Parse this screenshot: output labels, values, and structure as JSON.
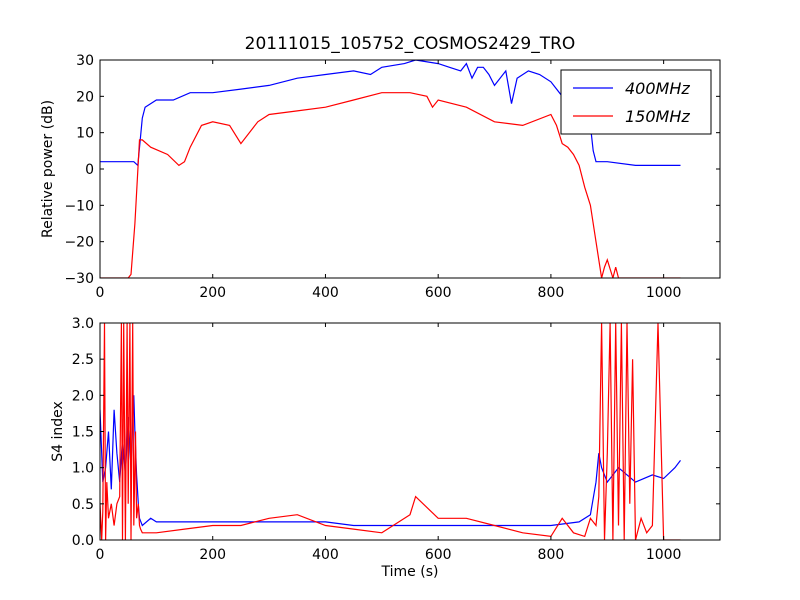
{
  "figure": {
    "title": "20111015_105752_COSMOS2429_TRO",
    "xlabel": "Time (s)"
  },
  "chart_data": [
    {
      "type": "line",
      "title": "20111015_105752_COSMOS2429_TRO",
      "ylabel": "Relative power (dB)",
      "xlim": [
        0,
        1100
      ],
      "ylim": [
        -30,
        30
      ],
      "xticks": [
        0,
        200,
        400,
        600,
        800,
        1000
      ],
      "yticks": [
        -30,
        -20,
        -10,
        0,
        10,
        20,
        30
      ],
      "ytick_labels": [
        "−30",
        "−20",
        "−10",
        "0",
        "10",
        "20",
        "30"
      ],
      "grid": false,
      "legend": {
        "position": "top-right"
      },
      "series": [
        {
          "name": "400MHz",
          "color": "#0000ff",
          "x": [
            0,
            20,
            40,
            60,
            67,
            75,
            80,
            100,
            130,
            160,
            200,
            250,
            300,
            350,
            400,
            450,
            480,
            500,
            540,
            560,
            600,
            620,
            640,
            650,
            660,
            670,
            680,
            690,
            700,
            720,
            730,
            740,
            760,
            780,
            800,
            820,
            840,
            850,
            860,
            870,
            875,
            880,
            900,
            950,
            1000,
            1030
          ],
          "y": [
            2,
            2,
            2,
            2,
            1,
            14,
            17,
            19,
            19,
            21,
            21,
            22,
            23,
            25,
            26,
            27,
            26,
            28,
            29,
            30,
            29,
            28,
            27,
            29,
            25,
            28,
            28,
            26,
            23,
            27,
            18,
            25,
            27,
            26,
            24,
            20,
            17,
            17,
            12,
            12,
            5,
            2,
            2,
            1,
            1,
            1
          ]
        },
        {
          "name": "150MHz",
          "color": "#ff0000",
          "x": [
            0,
            50,
            55,
            62,
            70,
            75,
            90,
            120,
            140,
            150,
            160,
            180,
            200,
            230,
            250,
            280,
            300,
            350,
            400,
            450,
            500,
            550,
            580,
            590,
            600,
            650,
            700,
            750,
            800,
            810,
            820,
            830,
            840,
            850,
            860,
            870,
            880,
            890,
            895,
            900,
            910,
            915,
            920,
            950,
            1000,
            1030
          ],
          "y": [
            -30,
            -30,
            -29,
            -15,
            8,
            8,
            6,
            4,
            1,
            2,
            6,
            12,
            13,
            12,
            7,
            13,
            15,
            16,
            17,
            19,
            21,
            21,
            20,
            17,
            19,
            17,
            13,
            12,
            15,
            12,
            7,
            6,
            4,
            1,
            -5,
            -10,
            -20,
            -30,
            -27,
            -25,
            -30,
            -27,
            -30,
            -30,
            -30,
            -30
          ]
        }
      ]
    },
    {
      "type": "line",
      "xlabel": "Time (s)",
      "ylabel": "S4 index",
      "xlim": [
        0,
        1100
      ],
      "ylim": [
        0,
        3
      ],
      "xticks": [
        0,
        200,
        400,
        600,
        800,
        1000
      ],
      "yticks": [
        0,
        0.5,
        1,
        1.5,
        2,
        2.5,
        3
      ],
      "ytick_labels": [
        "0.0",
        "0.5",
        "1.0",
        "1.5",
        "2.0",
        "2.5",
        "3.0"
      ],
      "grid": false,
      "series": [
        {
          "color": "#0000ff",
          "x": [
            0,
            5,
            10,
            15,
            20,
            25,
            30,
            35,
            40,
            45,
            50,
            55,
            60,
            62,
            65,
            68,
            70,
            75,
            90,
            100,
            120,
            150,
            200,
            250,
            300,
            350,
            400,
            450,
            500,
            550,
            600,
            650,
            700,
            750,
            800,
            850,
            870,
            880,
            885,
            890,
            900,
            920,
            950,
            980,
            1000,
            1020,
            1030
          ],
          "y": [
            1.8,
            0.8,
            1.0,
            1.5,
            0.7,
            1.8,
            1.2,
            0.8,
            1.4,
            0.9,
            1.7,
            1.0,
            2.0,
            1.5,
            0.9,
            0.5,
            0.3,
            0.2,
            0.3,
            0.25,
            0.25,
            0.25,
            0.25,
            0.25,
            0.25,
            0.25,
            0.25,
            0.2,
            0.2,
            0.2,
            0.2,
            0.2,
            0.2,
            0.2,
            0.2,
            0.25,
            0.35,
            0.8,
            1.2,
            1.0,
            0.8,
            1.0,
            0.8,
            0.9,
            0.85,
            1.0,
            1.1
          ]
        },
        {
          "color": "#ff0000",
          "x": [
            0,
            3,
            5,
            8,
            10,
            12,
            15,
            20,
            25,
            30,
            35,
            38,
            40,
            42,
            45,
            48,
            50,
            53,
            55,
            58,
            60,
            63,
            65,
            68,
            70,
            72,
            75,
            100,
            150,
            200,
            250,
            300,
            350,
            400,
            450,
            500,
            550,
            560,
            600,
            650,
            700,
            750,
            800,
            820,
            840,
            860,
            870,
            880,
            885,
            890,
            895,
            900,
            905,
            910,
            915,
            920,
            925,
            930,
            935,
            940,
            945,
            950,
            960,
            970,
            980,
            990,
            1000,
            1030
          ],
          "y": [
            0.5,
            0,
            0.4,
            3,
            0,
            0.8,
            0.3,
            0.5,
            0.2,
            0.5,
            0.6,
            3,
            0,
            3,
            0,
            3,
            0.5,
            3,
            0,
            3,
            0.2,
            1.5,
            0.3,
            0.5,
            0.2,
            0.15,
            0.1,
            0.1,
            0.15,
            0.2,
            0.2,
            0.3,
            0.35,
            0.2,
            0.15,
            0.1,
            0.35,
            0.6,
            0.3,
            0.3,
            0.2,
            0.1,
            0.05,
            0.3,
            0.1,
            0.05,
            0.3,
            0.2,
            0.6,
            3,
            0,
            1.2,
            3,
            0,
            3,
            0.2,
            3,
            0,
            3,
            0.5,
            2.5,
            0,
            0.3,
            0.1,
            0.2,
            3,
            0,
            0
          ]
        }
      ]
    }
  ]
}
